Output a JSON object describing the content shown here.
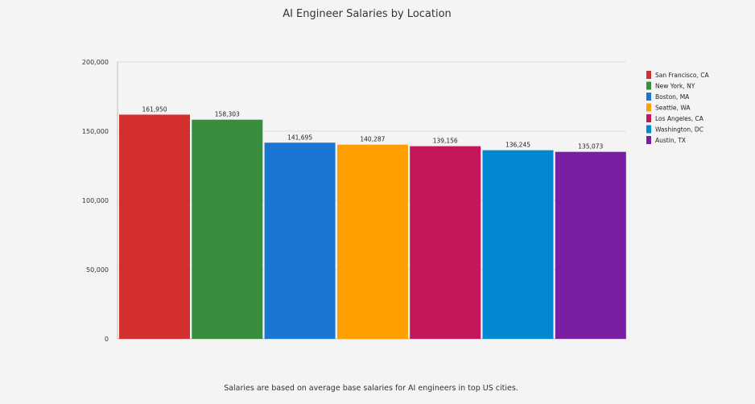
{
  "chart_data": {
    "type": "bar",
    "title": "AI Engineer Salaries by Location",
    "footnote": "Salaries are based on average base salaries for AI engineers in top US cities.",
    "categories": [
      "San Francisco, CA",
      "New York, NY",
      "Boston, MA",
      "Seattle, WA",
      "Los Angeles, CA",
      "Washington, DC",
      "Austin, TX"
    ],
    "values": [
      161950,
      158303,
      141695,
      140287,
      139156,
      136245,
      135073
    ],
    "value_labels": [
      "161,950",
      "158,303",
      "141,695",
      "140,287",
      "139,156",
      "136,245",
      "135,073"
    ],
    "colors": [
      "#d32f2f",
      "#388e3c",
      "#1976d2",
      "#ffa000",
      "#c2185b",
      "#0288d1",
      "#7b1fa2"
    ],
    "ylim": [
      0,
      200000
    ],
    "yticks": [
      0,
      50000,
      100000,
      150000,
      200000
    ],
    "ytick_labels": [
      "0",
      "50,000",
      "100,000",
      "150,000",
      "200,000"
    ],
    "xlabel": "",
    "ylabel": "",
    "grid": true,
    "legend_position": "right"
  }
}
